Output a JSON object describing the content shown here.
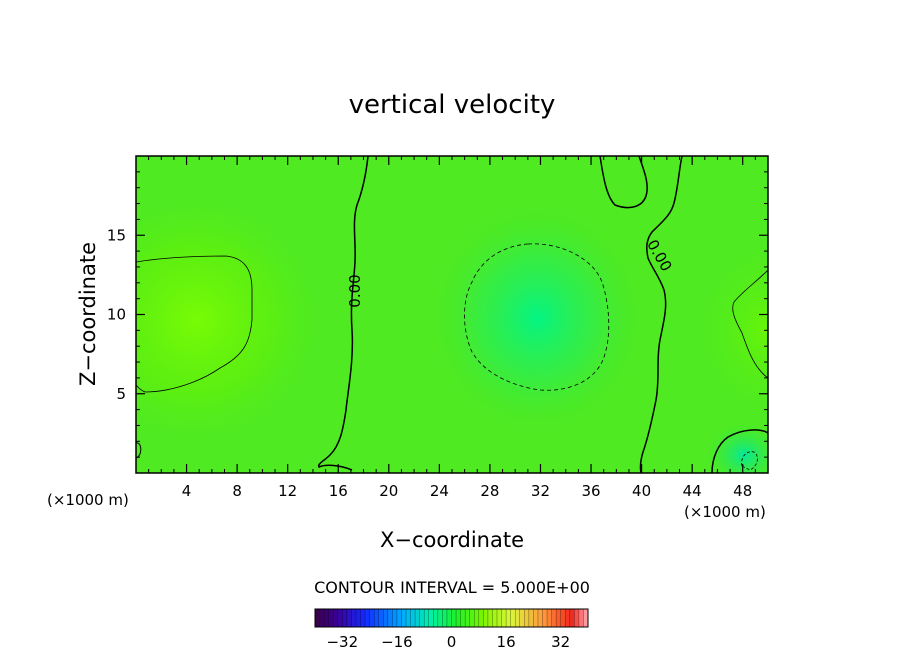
{
  "chart_data": {
    "type": "heatmap",
    "title": "vertical velocity",
    "xlabel": "X−coordinate",
    "ylabel": "Z−coordinate",
    "x_unit_left": "(×1000 m)",
    "x_unit_right": "(×1000 m)",
    "xlim": [
      0,
      50
    ],
    "ylim": [
      0,
      20
    ],
    "x_ticks": [
      4,
      8,
      12,
      16,
      20,
      24,
      28,
      32,
      36,
      40,
      44,
      48
    ],
    "y_ticks": [
      5,
      10,
      15
    ],
    "contour_interval_text": "CONTOUR INTERVAL = 5.000E+00",
    "contour_label": "0.00",
    "colorbar": {
      "min": -40,
      "max": 40,
      "ticks": [
        -32,
        -16,
        0,
        16,
        32
      ],
      "tick_labels": [
        "−32",
        "−16",
        "0",
        "16",
        "32"
      ]
    },
    "features": [
      {
        "name": "positive-cell-left",
        "x": 5,
        "z": 10,
        "value": 6
      },
      {
        "name": "negative-cell-center",
        "x": 31.5,
        "z": 10,
        "value": -6
      },
      {
        "name": "positive-cell-right",
        "x": 48,
        "z": 9,
        "value": 3
      },
      {
        "name": "negative-cell-lower-right",
        "x": 47.5,
        "z": 1.2,
        "value": -4
      }
    ]
  }
}
